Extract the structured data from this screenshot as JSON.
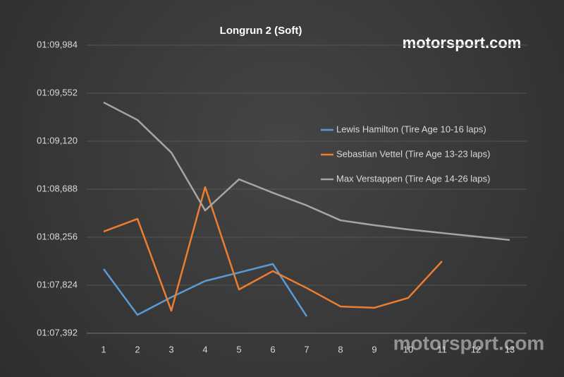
{
  "chart_data": {
    "type": "line",
    "title": "Longrun 2 (Soft)",
    "watermark": "motorsport.com",
    "categories": [
      "1",
      "2",
      "3",
      "4",
      "5",
      "6",
      "7",
      "8",
      "9",
      "10",
      "11",
      "12",
      "13"
    ],
    "series": [
      {
        "name": "Lewis Hamilton (Tire Age 10-16 laps)",
        "color": "#5b9bd5",
        "values": [
          67.97,
          67.557,
          67.716,
          67.862,
          67.938,
          68.015,
          67.544,
          null,
          null,
          null,
          null,
          null,
          null
        ]
      },
      {
        "name": "Sebastian Vettel (Tire Age 13-23 laps)",
        "color": "#ed7d31",
        "values": [
          68.307,
          68.421,
          67.595,
          68.707,
          67.786,
          67.951,
          67.799,
          67.633,
          67.621,
          67.71,
          68.04,
          null,
          null
        ]
      },
      {
        "name": "Max Verstappen (Tire Age 14-26 laps)",
        "color": "#a5a5a5",
        "values": [
          69.469,
          69.311,
          69.018,
          68.497,
          68.777,
          68.656,
          68.542,
          68.408,
          68.364,
          68.326,
          68.294,
          68.262,
          68.231
        ]
      }
    ],
    "ylim": [
      67.392,
      69.984
    ],
    "yticks": [
      {
        "value": 67.392,
        "label": "01:07,392"
      },
      {
        "value": 67.824,
        "label": "01:07,824"
      },
      {
        "value": 68.256,
        "label": "01:08,256"
      },
      {
        "value": 68.688,
        "label": "01:08,688"
      },
      {
        "value": 69.12,
        "label": "01:09,120"
      },
      {
        "value": 69.552,
        "label": "01:09,552"
      },
      {
        "value": 69.984,
        "label": "01:09,984"
      }
    ],
    "grid": true,
    "legend": "right"
  }
}
